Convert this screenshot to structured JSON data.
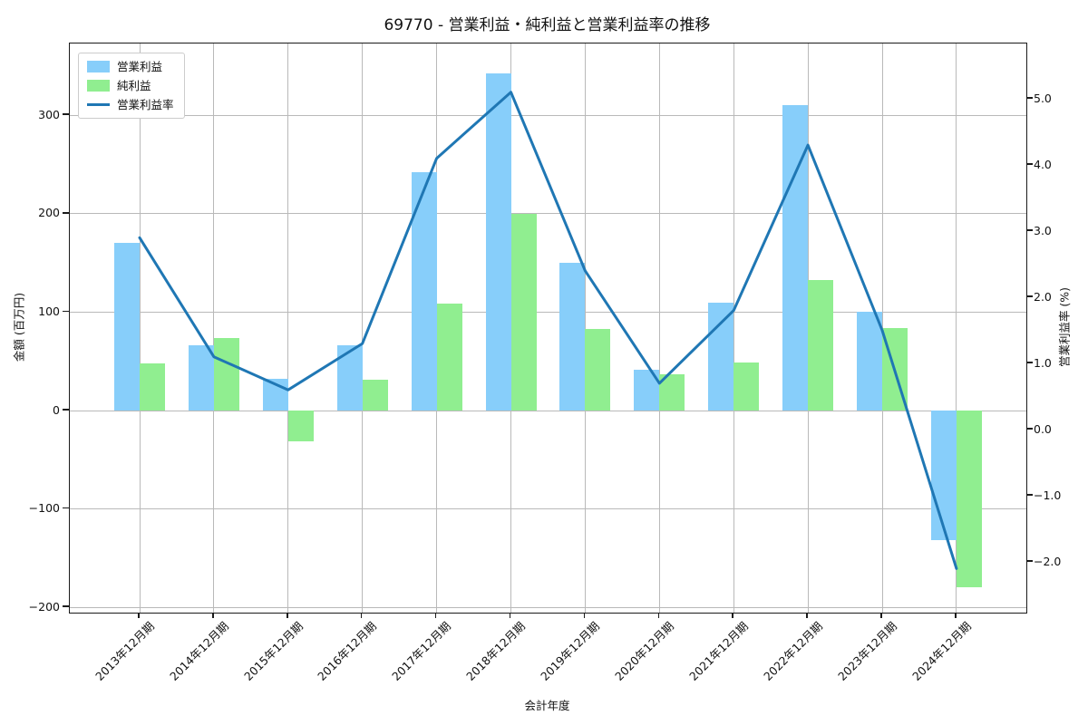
{
  "title": "69770 - 営業利益・純利益と営業利益率の推移",
  "chart_data": {
    "type": "combo (grouped bars + line, dual y-axis)",
    "title": "69770 - 営業利益・純利益と営業利益率の推移",
    "xlabel": "会計年度",
    "ylabel_left": "金額 (百万円)",
    "ylabel_right": "営業利益率 (%)",
    "grid": true,
    "legend_position": "upper left",
    "categories": [
      "2013年12月期",
      "2014年12月期",
      "2015年12月期",
      "2016年12月期",
      "2017年12月期",
      "2018年12月期",
      "2019年12月期",
      "2020年12月期",
      "2021年12月期",
      "2022年12月期",
      "2023年12月期",
      "2024年12月期"
    ],
    "series": [
      {
        "name": "営業利益",
        "type": "bar",
        "axis": "left",
        "color": "#87CEFA",
        "values": [
          170,
          66,
          32,
          66,
          242,
          343,
          150,
          41,
          110,
          310,
          100,
          -132
        ]
      },
      {
        "name": "純利益",
        "type": "bar",
        "axis": "left",
        "color": "#90EE90",
        "values": [
          48,
          74,
          -31,
          31,
          109,
          200,
          83,
          37,
          49,
          133,
          84,
          -180
        ]
      },
      {
        "name": "営業利益率",
        "type": "line",
        "axis": "right",
        "color": "#1F77B4",
        "values": [
          2.9,
          1.1,
          0.6,
          1.3,
          4.1,
          5.1,
          2.4,
          0.7,
          1.8,
          4.3,
          1.5,
          -2.1
        ]
      }
    ],
    "axis_left": {
      "ticks": [
        300,
        200,
        100,
        0,
        -100,
        -200
      ],
      "approx_range": [
        -207,
        374
      ]
    },
    "axis_right": {
      "ticks": [
        5.0,
        4.0,
        3.0,
        2.0,
        1.0,
        0.0,
        -1.0,
        -2.0
      ],
      "approx_range": [
        -2.8,
        5.8
      ]
    },
    "colors": {
      "grid": "#b9b9b9",
      "spine": "#1a1a1a",
      "background": "#ffffff"
    }
  }
}
